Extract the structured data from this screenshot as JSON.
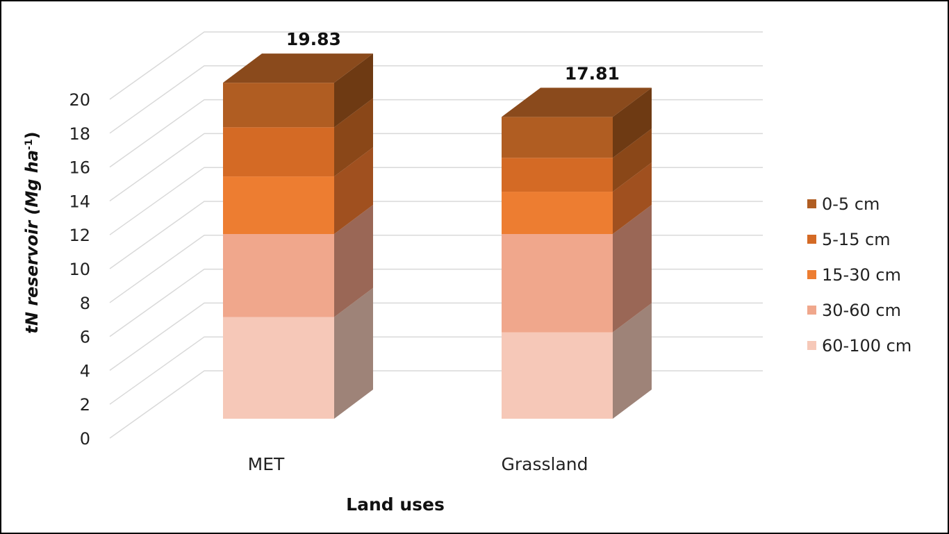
{
  "chart_data": {
    "type": "bar",
    "stacked": true,
    "style": "3d-stacked-column",
    "categories": [
      "MET",
      "Grassland"
    ],
    "series": [
      {
        "name": "60-100 cm",
        "color": "#F6C8B8",
        "side_color": "#9E8378",
        "values": [
          6.0,
          5.1
        ]
      },
      {
        "name": "30-60 cm",
        "color": "#F0A78C",
        "side_color": "#9A6756",
        "values": [
          4.9,
          5.8
        ]
      },
      {
        "name": "15-30 cm",
        "color": "#ED7D31",
        "side_color": "#A0501F",
        "values": [
          3.4,
          2.5
        ]
      },
      {
        "name": "5-15 cm",
        "color": "#D46A25",
        "side_color": "#8A4718",
        "values": [
          2.9,
          2.0
        ]
      },
      {
        "name": "0-5 cm",
        "color": "#B05D22",
        "side_color": "#6E3A13",
        "values": [
          2.63,
          2.41
        ]
      }
    ],
    "totals": [
      "19.83",
      "17.81"
    ],
    "xlabel": "Land uses",
    "ylabel_main": "tN reservoir (Mg ha",
    "ylabel_sup": "-1",
    "ylabel_close": ")",
    "yticks": [
      "0",
      "2",
      "4",
      "6",
      "8",
      "10",
      "12",
      "14",
      "16",
      "18",
      "20"
    ],
    "ylim": [
      0,
      20
    ],
    "grid": true,
    "legend_position": "right",
    "legend_order": [
      "0-5 cm",
      "5-15 cm",
      "15-30 cm",
      "30-60 cm",
      "60-100 cm"
    ],
    "top_face_color": "#8A4A1C"
  }
}
